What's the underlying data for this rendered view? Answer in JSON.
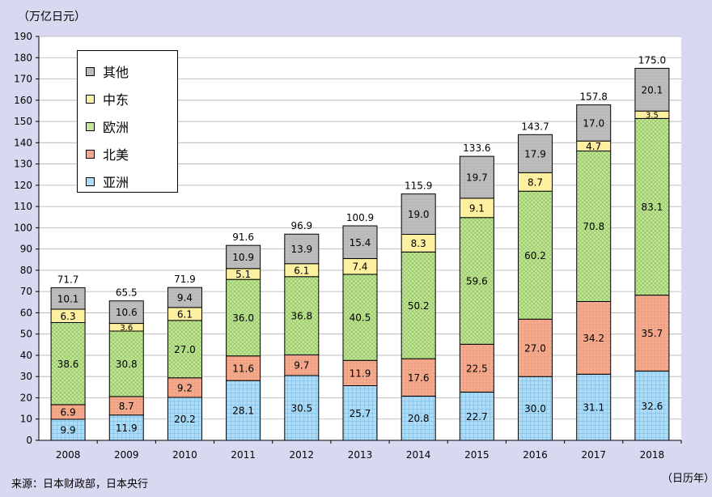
{
  "chart_data": {
    "type": "bar",
    "stacked": true,
    "unit_label": "（万亿日元）",
    "x_unit_label": "（日历年）",
    "source": "来源：日本财政部，日本央行",
    "categories": [
      "2008",
      "2009",
      "2010",
      "2011",
      "2012",
      "2013",
      "2014",
      "2015",
      "2016",
      "2017",
      "2018"
    ],
    "totals": [
      "71.7",
      "65.5",
      "71.9",
      "91.6",
      "96.9",
      "100.9",
      "115.9",
      "133.6",
      "143.7",
      "157.8",
      "175.0"
    ],
    "ylim": [
      0,
      190
    ],
    "yticks": [
      "0",
      "10",
      "20",
      "30",
      "40",
      "50",
      "60",
      "70",
      "80",
      "90",
      "100",
      "110",
      "120",
      "130",
      "140",
      "150",
      "160",
      "170",
      "180",
      "190"
    ],
    "grid": true,
    "legend_position": "top-left",
    "series": [
      {
        "name": "亚洲",
        "color": "#aedcf7",
        "values": [
          9.9,
          11.9,
          20.2,
          28.1,
          30.5,
          25.7,
          20.8,
          22.7,
          30.0,
          31.1,
          32.6
        ],
        "labels": [
          "9.9",
          "11.9",
          "20.2",
          "28.1",
          "30.5",
          "25.7",
          "20.8",
          "22.7",
          "30.0",
          "31.1",
          "32.6"
        ]
      },
      {
        "name": "北美",
        "color": "#f4a98c",
        "values": [
          6.9,
          8.7,
          9.2,
          11.6,
          9.7,
          11.9,
          17.6,
          22.5,
          27.0,
          34.2,
          35.7
        ],
        "labels": [
          "6.9",
          "8.7",
          "9.2",
          "11.6",
          "9.7",
          "11.9",
          "17.6",
          "22.5",
          "27.0",
          "34.2",
          "35.7"
        ]
      },
      {
        "name": "欧洲",
        "color": "#c4e59a",
        "values": [
          38.6,
          30.8,
          27.0,
          36.0,
          36.8,
          40.5,
          50.2,
          59.6,
          60.2,
          70.8,
          83.1
        ],
        "labels": [
          "38.6",
          "30.8",
          "27.0",
          "36.0",
          "36.8",
          "40.5",
          "50.2",
          "59.6",
          "60.2",
          "70.8",
          "83.1"
        ]
      },
      {
        "name": "中东",
        "color": "#fdf0a0",
        "values": [
          6.3,
          3.6,
          6.1,
          5.1,
          6.1,
          7.4,
          8.3,
          9.1,
          8.7,
          4.7,
          3.5
        ],
        "labels": [
          "6.3",
          "3.6",
          "6.1",
          "5.1",
          "6.1",
          "7.4",
          "8.3",
          "9.1",
          "8.7",
          "4.7",
          "3.5"
        ]
      },
      {
        "name": "其他",
        "color": "#c0c0c0",
        "values": [
          10.1,
          10.6,
          9.4,
          10.9,
          13.9,
          15.4,
          19.0,
          19.7,
          17.9,
          17.0,
          20.1
        ],
        "labels": [
          "10.1",
          "10.6",
          "9.4",
          "10.9",
          "13.9",
          "15.4",
          "19.0",
          "19.7",
          "17.9",
          "17.0",
          "20.1"
        ]
      }
    ],
    "legend_order": [
      "其他",
      "中东",
      "欧洲",
      "北美",
      "亚洲"
    ]
  }
}
